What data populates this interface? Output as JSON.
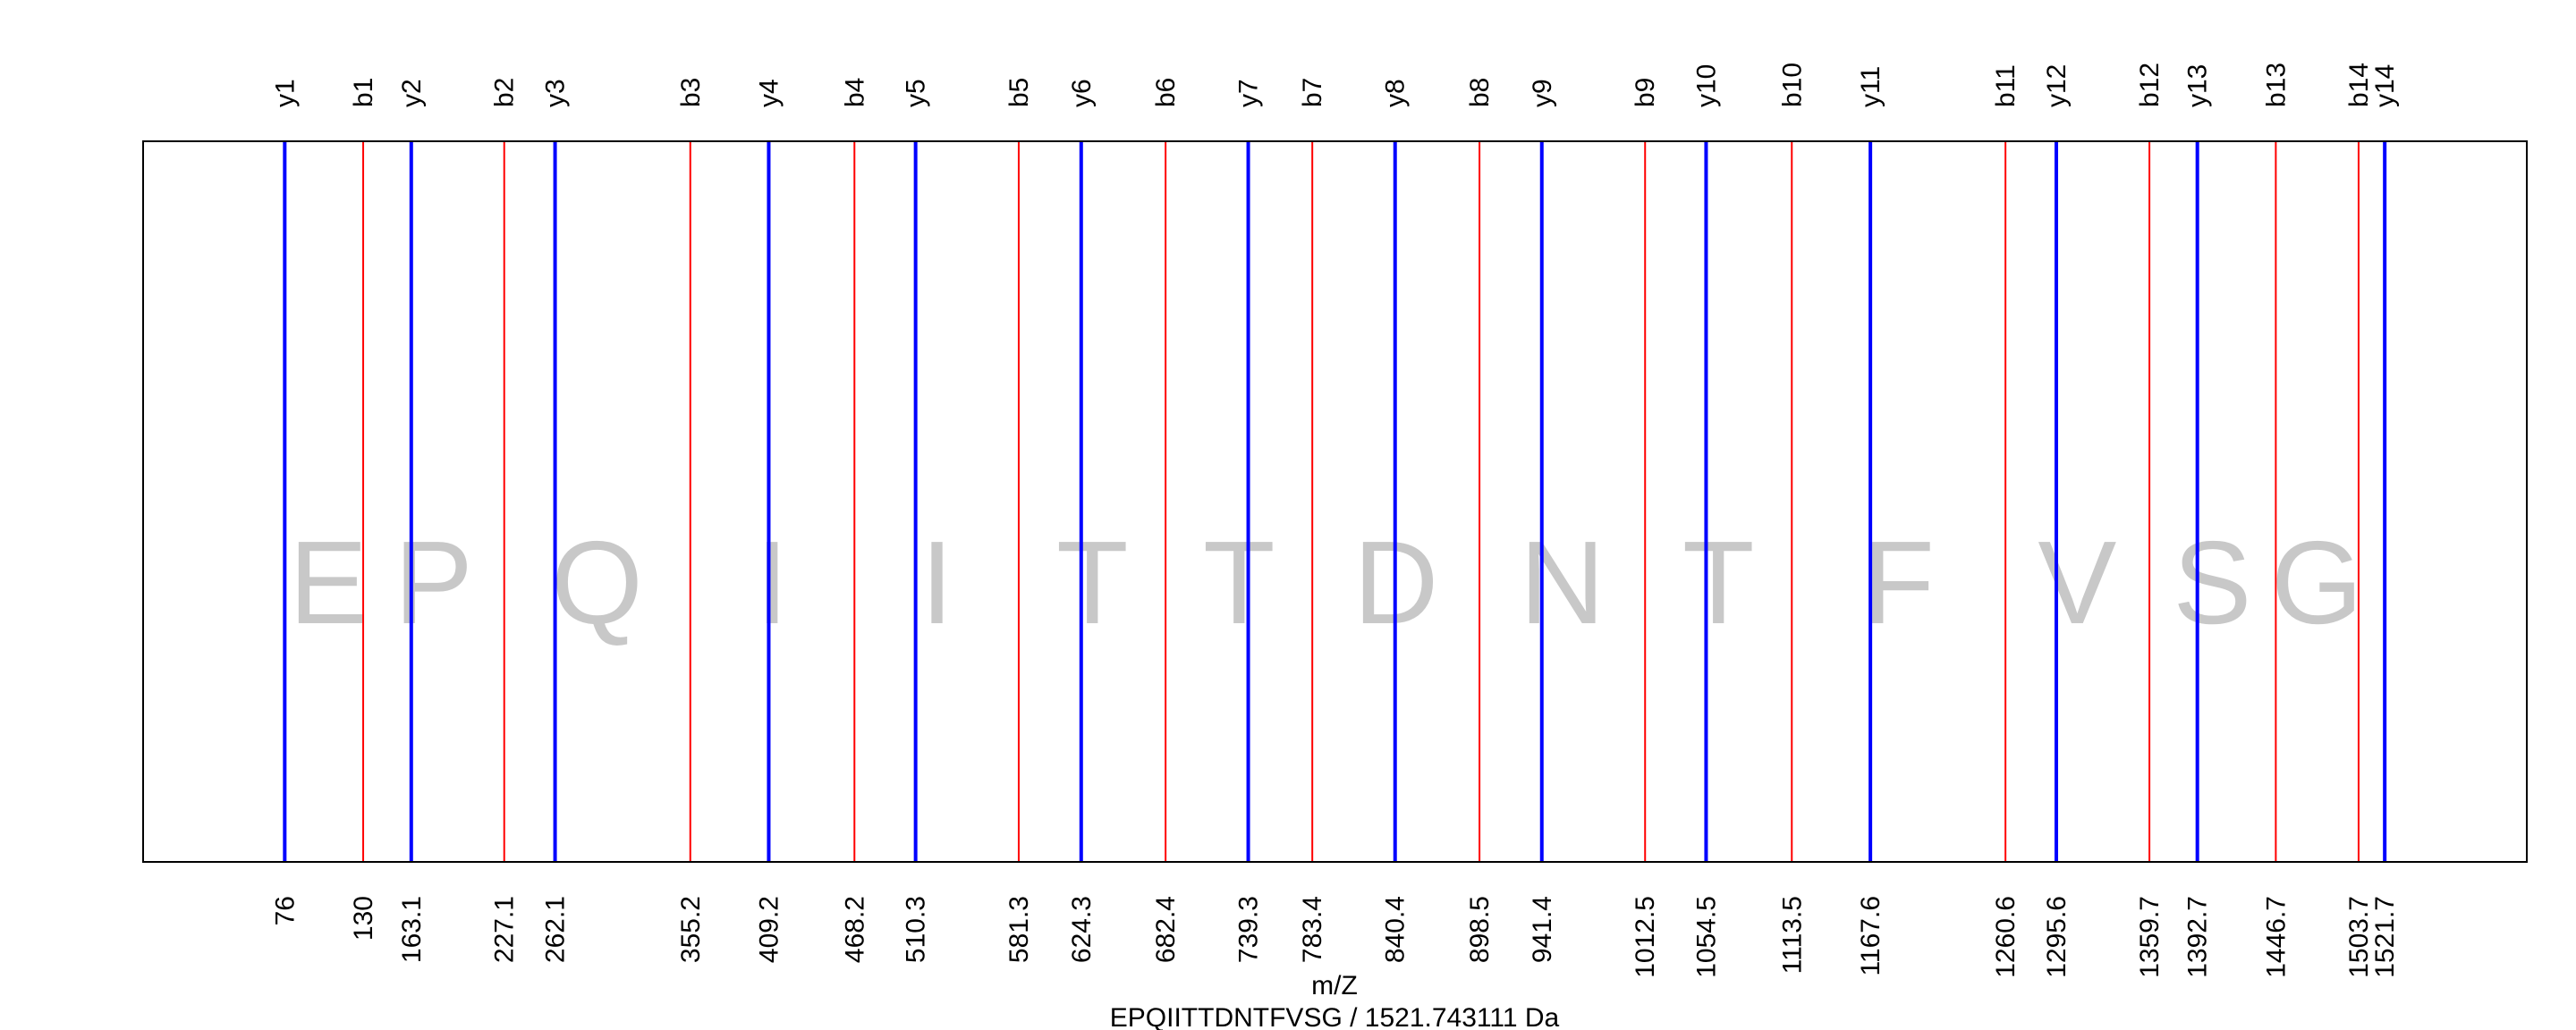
{
  "chart_data": {
    "type": "fragment-ion-map",
    "xlabel": "m/Z",
    "subtitle": "EPQIITTDNTFVSG / 1521.743111 Da",
    "xlim": [
      -21.5,
      1619.5
    ],
    "colors": {
      "b": "#ff0000",
      "y": "#0000ff",
      "sequence": "#c8c8c8",
      "frame": "#000000"
    },
    "ions": [
      {
        "label": "y1",
        "series": "y",
        "mz": 76,
        "mz_label": "76"
      },
      {
        "label": "b1",
        "series": "b",
        "mz": 130,
        "mz_label": "130"
      },
      {
        "label": "y2",
        "series": "y",
        "mz": 163.1,
        "mz_label": "163.1"
      },
      {
        "label": "b2",
        "series": "b",
        "mz": 227.1,
        "mz_label": "227.1"
      },
      {
        "label": "y3",
        "series": "y",
        "mz": 262.1,
        "mz_label": "262.1"
      },
      {
        "label": "b3",
        "series": "b",
        "mz": 355.2,
        "mz_label": "355.2"
      },
      {
        "label": "y4",
        "series": "y",
        "mz": 409.2,
        "mz_label": "409.2"
      },
      {
        "label": "b4",
        "series": "b",
        "mz": 468.2,
        "mz_label": "468.2"
      },
      {
        "label": "y5",
        "series": "y",
        "mz": 510.3,
        "mz_label": "510.3"
      },
      {
        "label": "b5",
        "series": "b",
        "mz": 581.3,
        "mz_label": "581.3"
      },
      {
        "label": "y6",
        "series": "y",
        "mz": 624.3,
        "mz_label": "624.3"
      },
      {
        "label": "b6",
        "series": "b",
        "mz": 682.4,
        "mz_label": "682.4"
      },
      {
        "label": "y7",
        "series": "y",
        "mz": 739.3,
        "mz_label": "739.3"
      },
      {
        "label": "b7",
        "series": "b",
        "mz": 783.4,
        "mz_label": "783.4"
      },
      {
        "label": "y8",
        "series": "y",
        "mz": 840.4,
        "mz_label": "840.4"
      },
      {
        "label": "b8",
        "series": "b",
        "mz": 898.5,
        "mz_label": "898.5"
      },
      {
        "label": "y9",
        "series": "y",
        "mz": 941.4,
        "mz_label": "941.4"
      },
      {
        "label": "b9",
        "series": "b",
        "mz": 1012.5,
        "mz_label": "1012.5"
      },
      {
        "label": "y10",
        "series": "y",
        "mz": 1054.5,
        "mz_label": "1054.5"
      },
      {
        "label": "b10",
        "series": "b",
        "mz": 1113.5,
        "mz_label": "1113.5"
      },
      {
        "label": "y11",
        "series": "y",
        "mz": 1167.6,
        "mz_label": "1167.6"
      },
      {
        "label": "b11",
        "series": "b",
        "mz": 1260.6,
        "mz_label": "1260.6"
      },
      {
        "label": "y12",
        "series": "y",
        "mz": 1295.6,
        "mz_label": "1295.6"
      },
      {
        "label": "b12",
        "series": "b",
        "mz": 1359.7,
        "mz_label": "1359.7"
      },
      {
        "label": "y13",
        "series": "y",
        "mz": 1392.7,
        "mz_label": "1392.7"
      },
      {
        "label": "b13",
        "series": "b",
        "mz": 1446.7,
        "mz_label": "1446.7"
      },
      {
        "label": "b14",
        "series": "b",
        "mz": 1503.7,
        "mz_label": "1503.7"
      },
      {
        "label": "y14",
        "series": "y",
        "mz": 1521.7,
        "mz_label": "1521.7"
      }
    ],
    "sequence_letters": [
      {
        "residue": "E",
        "mz": 106
      },
      {
        "residue": "P",
        "mz": 178.5
      },
      {
        "residue": "Q",
        "mz": 291
      },
      {
        "residue": "I",
        "mz": 411.5
      },
      {
        "residue": "I",
        "mz": 525
      },
      {
        "residue": "T",
        "mz": 632
      },
      {
        "residue": "T",
        "mz": 733
      },
      {
        "residue": "D",
        "mz": 841
      },
      {
        "residue": "N",
        "mz": 955.5
      },
      {
        "residue": "T",
        "mz": 1063
      },
      {
        "residue": "F",
        "mz": 1187
      },
      {
        "residue": "V",
        "mz": 1310
      },
      {
        "residue": "S",
        "mz": 1403
      },
      {
        "residue": "G",
        "mz": 1475
      }
    ]
  }
}
